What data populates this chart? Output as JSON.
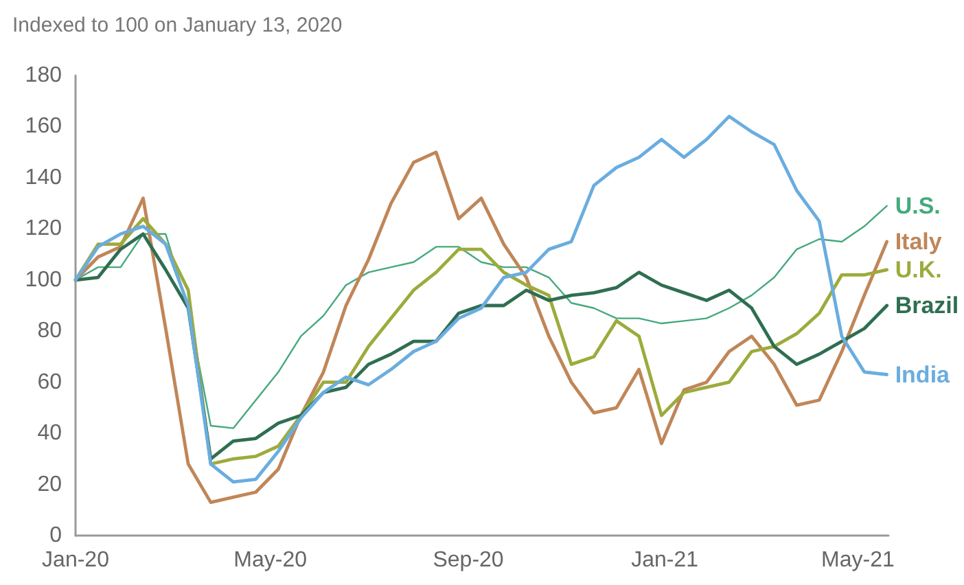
{
  "chart_data": {
    "type": "line",
    "title": "Indexed to 100 on January 13, 2020",
    "xlim": [
      "2020-01-13",
      "2021-06-01"
    ],
    "xticks": [
      {
        "value": "2020-01-13",
        "label": "Jan-20"
      },
      {
        "value": "2020-05-13",
        "label": "May-20"
      },
      {
        "value": "2020-09-13",
        "label": "Sep-20"
      },
      {
        "value": "2021-01-13",
        "label": "Jan-21"
      },
      {
        "value": "2021-05-13",
        "label": "May-21"
      }
    ],
    "ylim": [
      0,
      180
    ],
    "yticks": [
      0,
      20,
      40,
      60,
      80,
      100,
      120,
      140,
      160,
      180
    ],
    "grid": false,
    "legend": false,
    "marker": "none",
    "x": [
      "2020-01-13",
      "2020-01-27",
      "2020-02-10",
      "2020-02-24",
      "2020-03-09",
      "2020-03-23",
      "2020-04-06",
      "2020-04-20",
      "2020-05-04",
      "2020-05-18",
      "2020-06-01",
      "2020-06-15",
      "2020-06-29",
      "2020-07-13",
      "2020-07-27",
      "2020-08-10",
      "2020-08-24",
      "2020-09-07",
      "2020-09-21",
      "2020-10-05",
      "2020-10-19",
      "2020-11-02",
      "2020-11-16",
      "2020-11-30",
      "2020-12-14",
      "2020-12-28",
      "2021-01-11",
      "2021-01-25",
      "2021-02-08",
      "2021-02-22",
      "2021-03-08",
      "2021-03-22",
      "2021-04-05",
      "2021-04-19",
      "2021-05-03",
      "2021-05-17",
      "2021-05-31"
    ],
    "series": [
      {
        "name": "U.S.",
        "color": "#45a97c",
        "values": [
          100,
          105,
          105,
          118,
          118,
          89,
          43,
          42,
          53,
          64,
          78,
          86,
          98,
          103,
          105,
          107,
          113,
          113,
          107,
          105,
          105,
          101,
          91,
          89,
          85,
          85,
          83,
          84,
          85,
          89,
          94,
          101,
          112,
          116,
          115,
          121,
          129
        ]
      },
      {
        "name": "Italy",
        "color": "#c08658",
        "values": [
          100,
          109,
          113,
          132,
          81,
          28,
          13,
          15,
          17,
          26,
          47,
          64,
          90,
          108,
          130,
          146,
          150,
          124,
          132,
          114,
          101,
          78,
          60,
          48,
          50,
          65,
          36,
          57,
          60,
          72,
          78,
          67,
          51,
          53,
          72,
          94,
          115
        ]
      },
      {
        "name": "U.K.",
        "color": "#9cab3c",
        "values": [
          100,
          114,
          114,
          124,
          114,
          96,
          28,
          30,
          31,
          35,
          47,
          60,
          60,
          74,
          85,
          96,
          103,
          112,
          112,
          103,
          98,
          94,
          67,
          70,
          84,
          78,
          47,
          56,
          58,
          60,
          72,
          74,
          79,
          87,
          102,
          102,
          104
        ]
      },
      {
        "name": "Brazil",
        "color": "#2f6e51",
        "values": [
          100,
          101,
          112,
          118,
          104,
          89,
          30,
          37,
          38,
          44,
          47,
          56,
          58,
          67,
          71,
          76,
          76,
          87,
          90,
          90,
          96,
          92,
          94,
          95,
          97,
          103,
          98,
          95,
          92,
          96,
          89,
          74,
          67,
          71,
          76,
          81,
          90
        ]
      },
      {
        "name": "India",
        "color": "#6aaddf",
        "values": [
          100,
          113,
          118,
          121,
          114,
          90,
          28,
          21,
          22,
          33,
          46,
          56,
          62,
          59,
          65,
          72,
          76,
          85,
          89,
          101,
          103,
          112,
          115,
          137,
          144,
          148,
          155,
          148,
          155,
          164,
          158,
          153,
          135,
          123,
          78,
          64,
          63
        ]
      }
    ]
  }
}
